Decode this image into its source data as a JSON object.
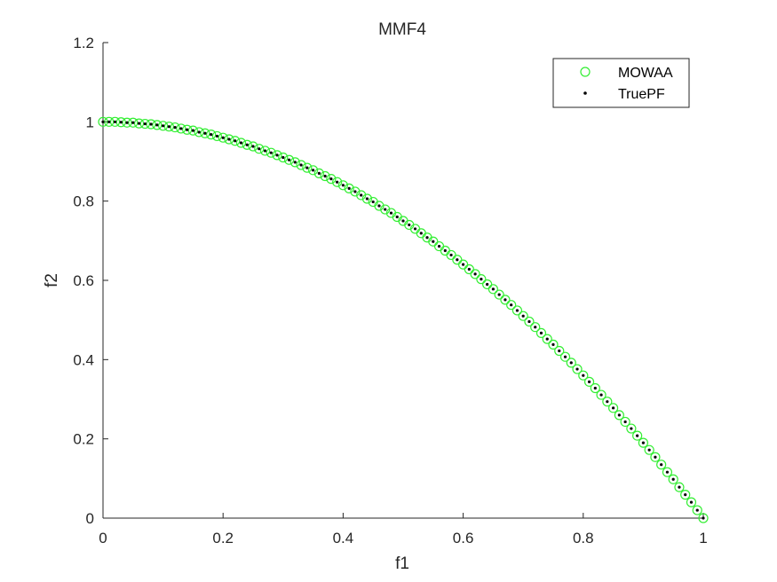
{
  "chart_data": {
    "type": "scatter",
    "title": "MMF4",
    "xlabel": "f1",
    "ylabel": "f2",
    "xlim": [
      0,
      1
    ],
    "ylim": [
      0,
      1.2
    ],
    "xticks": [
      0,
      0.2,
      0.4,
      0.6,
      0.8,
      1
    ],
    "xtick_labels": [
      "0",
      "0.2",
      "0.4",
      "0.6",
      "0.8",
      "1"
    ],
    "yticks": [
      0,
      0.2,
      0.4,
      0.6,
      0.8,
      1,
      1.2
    ],
    "ytick_labels": [
      "0",
      "0.2",
      "0.4",
      "0.6",
      "0.8",
      "1",
      "1.2"
    ],
    "grid": false,
    "legend_position": "top-right",
    "series": [
      {
        "name": "MOWAA",
        "marker": "circle-open",
        "color": "#33ee33",
        "x": [
          0,
          0.01,
          0.02,
          0.03,
          0.04,
          0.05,
          0.06,
          0.07,
          0.08,
          0.09,
          0.1,
          0.11,
          0.12,
          0.13,
          0.14,
          0.15,
          0.16,
          0.17,
          0.18,
          0.19,
          0.2,
          0.21,
          0.22,
          0.23,
          0.24,
          0.25,
          0.26,
          0.27,
          0.28,
          0.29,
          0.3,
          0.31,
          0.32,
          0.33,
          0.34,
          0.35,
          0.36,
          0.37,
          0.38,
          0.39,
          0.4,
          0.41,
          0.42,
          0.43,
          0.44,
          0.45,
          0.46,
          0.47,
          0.48,
          0.49,
          0.5,
          0.51,
          0.52,
          0.53,
          0.54,
          0.55,
          0.56,
          0.57,
          0.58,
          0.59,
          0.6,
          0.61,
          0.62,
          0.63,
          0.64,
          0.65,
          0.66,
          0.67,
          0.68,
          0.69,
          0.7,
          0.71,
          0.72,
          0.73,
          0.74,
          0.75,
          0.76,
          0.77,
          0.78,
          0.79,
          0.8,
          0.81,
          0.82,
          0.83,
          0.84,
          0.85,
          0.86,
          0.87,
          0.88,
          0.89,
          0.9,
          0.91,
          0.92,
          0.93,
          0.94,
          0.95,
          0.96,
          0.97,
          0.98,
          0.99,
          1.0
        ],
        "y": [
          1.0,
          1.0,
          1.0,
          0.999,
          0.998,
          0.998,
          0.996,
          0.995,
          0.994,
          0.992,
          0.99,
          0.988,
          0.986,
          0.983,
          0.98,
          0.978,
          0.974,
          0.971,
          0.968,
          0.964,
          0.96,
          0.956,
          0.952,
          0.947,
          0.942,
          0.938,
          0.932,
          0.927,
          0.922,
          0.916,
          0.91,
          0.904,
          0.898,
          0.891,
          0.884,
          0.878,
          0.87,
          0.863,
          0.856,
          0.848,
          0.84,
          0.832,
          0.824,
          0.815,
          0.806,
          0.798,
          0.788,
          0.779,
          0.77,
          0.76,
          0.75,
          0.74,
          0.73,
          0.719,
          0.708,
          0.698,
          0.686,
          0.675,
          0.664,
          0.652,
          0.64,
          0.628,
          0.616,
          0.603,
          0.59,
          0.578,
          0.564,
          0.551,
          0.538,
          0.524,
          0.51,
          0.496,
          0.482,
          0.467,
          0.452,
          0.438,
          0.422,
          0.407,
          0.392,
          0.376,
          0.36,
          0.344,
          0.328,
          0.311,
          0.294,
          0.278,
          0.26,
          0.243,
          0.226,
          0.208,
          0.19,
          0.172,
          0.154,
          0.135,
          0.116,
          0.098,
          0.078,
          0.059,
          0.04,
          0.02,
          0.0
        ]
      },
      {
        "name": "TruePF",
        "marker": "dot",
        "color": "#000000",
        "x": [
          0,
          0.01,
          0.02,
          0.03,
          0.04,
          0.05,
          0.06,
          0.07,
          0.08,
          0.09,
          0.1,
          0.11,
          0.12,
          0.13,
          0.14,
          0.15,
          0.16,
          0.17,
          0.18,
          0.19,
          0.2,
          0.21,
          0.22,
          0.23,
          0.24,
          0.25,
          0.26,
          0.27,
          0.28,
          0.29,
          0.3,
          0.31,
          0.32,
          0.33,
          0.34,
          0.35,
          0.36,
          0.37,
          0.38,
          0.39,
          0.4,
          0.41,
          0.42,
          0.43,
          0.44,
          0.45,
          0.46,
          0.47,
          0.48,
          0.49,
          0.5,
          0.51,
          0.52,
          0.53,
          0.54,
          0.55,
          0.56,
          0.57,
          0.58,
          0.59,
          0.6,
          0.61,
          0.62,
          0.63,
          0.64,
          0.65,
          0.66,
          0.67,
          0.68,
          0.69,
          0.7,
          0.71,
          0.72,
          0.73,
          0.74,
          0.75,
          0.76,
          0.77,
          0.78,
          0.79,
          0.8,
          0.81,
          0.82,
          0.83,
          0.84,
          0.85,
          0.86,
          0.87,
          0.88,
          0.89,
          0.9,
          0.91,
          0.92,
          0.93,
          0.94,
          0.95,
          0.96,
          0.97,
          0.98,
          0.99,
          1.0
        ],
        "y": [
          1.0,
          1.0,
          1.0,
          0.999,
          0.998,
          0.998,
          0.996,
          0.995,
          0.994,
          0.992,
          0.99,
          0.988,
          0.986,
          0.983,
          0.98,
          0.978,
          0.974,
          0.971,
          0.968,
          0.964,
          0.96,
          0.956,
          0.952,
          0.947,
          0.942,
          0.938,
          0.932,
          0.927,
          0.922,
          0.916,
          0.91,
          0.904,
          0.898,
          0.891,
          0.884,
          0.878,
          0.87,
          0.863,
          0.856,
          0.848,
          0.84,
          0.832,
          0.824,
          0.815,
          0.806,
          0.798,
          0.788,
          0.779,
          0.77,
          0.76,
          0.75,
          0.74,
          0.73,
          0.719,
          0.708,
          0.698,
          0.686,
          0.675,
          0.664,
          0.652,
          0.64,
          0.628,
          0.616,
          0.603,
          0.59,
          0.578,
          0.564,
          0.551,
          0.538,
          0.524,
          0.51,
          0.496,
          0.482,
          0.467,
          0.452,
          0.438,
          0.422,
          0.407,
          0.392,
          0.376,
          0.36,
          0.344,
          0.328,
          0.311,
          0.294,
          0.278,
          0.26,
          0.243,
          0.226,
          0.208,
          0.19,
          0.172,
          0.154,
          0.135,
          0.116,
          0.098,
          0.078,
          0.059,
          0.04,
          0.02,
          0.0
        ]
      }
    ]
  }
}
